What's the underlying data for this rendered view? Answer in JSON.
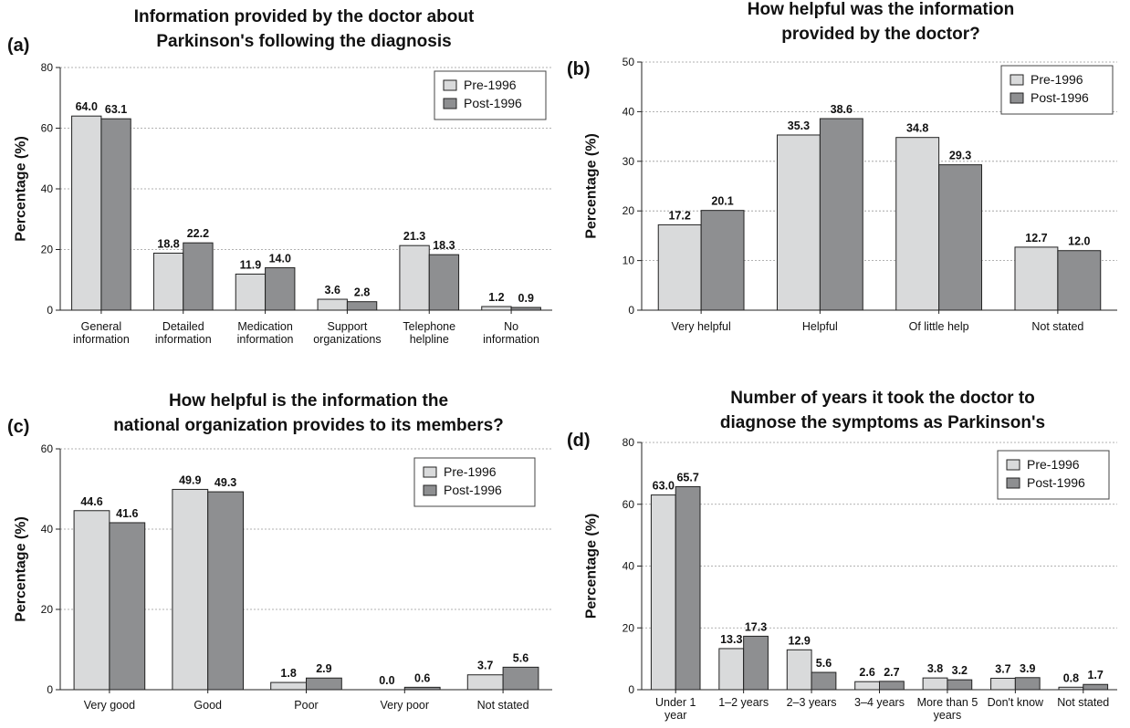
{
  "colors": {
    "pre": "#d9dadb",
    "post": "#8e8f91",
    "stroke": "#222222",
    "grid": "#999999"
  },
  "chart_data": [
    {
      "type": "bar",
      "panel": "(a)",
      "title": [
        "Information provided by the doctor about",
        "Parkinson's following the diagnosis"
      ],
      "ylabel": "Percentage (%)",
      "ylim": [
        0,
        80
      ],
      "yticks": [
        0,
        20,
        40,
        60,
        80
      ],
      "grid": true,
      "legend_position": "top-right",
      "categories": [
        [
          "General",
          "information"
        ],
        [
          "Detailed",
          "information"
        ],
        [
          "Medication",
          "information"
        ],
        [
          "Support",
          "organizations"
        ],
        [
          "Telephone",
          "helpline"
        ],
        [
          "No",
          "information"
        ]
      ],
      "series": [
        {
          "name": "Pre-1996",
          "values": [
            64.0,
            18.8,
            11.9,
            3.6,
            21.3,
            1.2
          ]
        },
        {
          "name": "Post-1996",
          "values": [
            63.1,
            22.2,
            14.0,
            2.8,
            18.3,
            0.9
          ]
        }
      ]
    },
    {
      "type": "bar",
      "panel": "(b)",
      "title": [
        "How helpful was the information",
        "provided by the doctor?"
      ],
      "ylabel": "Percentage (%)",
      "ylim": [
        0,
        50
      ],
      "yticks": [
        0,
        10,
        20,
        30,
        40,
        50
      ],
      "grid": true,
      "legend_position": "top-right",
      "categories": [
        [
          "Very helpful"
        ],
        [
          "Helpful"
        ],
        [
          "Of little help"
        ],
        [
          "Not stated"
        ]
      ],
      "series": [
        {
          "name": "Pre-1996",
          "values": [
            17.2,
            35.3,
            34.8,
            12.7
          ]
        },
        {
          "name": "Post-1996",
          "values": [
            20.1,
            38.6,
            29.3,
            12.0
          ]
        }
      ]
    },
    {
      "type": "bar",
      "panel": "(c)",
      "title": [
        "How helpful is the information the",
        "national organization provides to its members?"
      ],
      "ylabel": "Percentage (%)",
      "ylim": [
        0,
        60
      ],
      "yticks": [
        0,
        20,
        40,
        60
      ],
      "grid": true,
      "legend_position": "top-right",
      "categories": [
        [
          "Very good"
        ],
        [
          "Good"
        ],
        [
          "Poor"
        ],
        [
          "Very poor"
        ],
        [
          "Not stated"
        ]
      ],
      "series": [
        {
          "name": "Pre-1996",
          "values": [
            44.6,
            49.9,
            1.8,
            0.0,
            3.7
          ]
        },
        {
          "name": "Post-1996",
          "values": [
            41.6,
            49.3,
            2.9,
            0.6,
            5.6
          ]
        }
      ]
    },
    {
      "type": "bar",
      "panel": "(d)",
      "title": [
        "Number of years it took the doctor to",
        "diagnose the symptoms as Parkinson's"
      ],
      "ylabel": "Percentage (%)",
      "ylim": [
        0,
        80
      ],
      "yticks": [
        0,
        20,
        40,
        60,
        80
      ],
      "grid": true,
      "legend_position": "top-right",
      "categories": [
        [
          "Under 1",
          "year"
        ],
        [
          "1–2 years"
        ],
        [
          "2–3 years"
        ],
        [
          "3–4 years"
        ],
        [
          "More than 5",
          "years"
        ],
        [
          "Don't know"
        ],
        [
          "Not stated"
        ]
      ],
      "series": [
        {
          "name": "Pre-1996",
          "values": [
            63.0,
            13.3,
            12.9,
            2.6,
            3.8,
            3.7,
            0.8
          ]
        },
        {
          "name": "Post-1996",
          "values": [
            65.7,
            17.3,
            5.6,
            2.7,
            3.2,
            3.9,
            1.7
          ]
        }
      ]
    }
  ]
}
